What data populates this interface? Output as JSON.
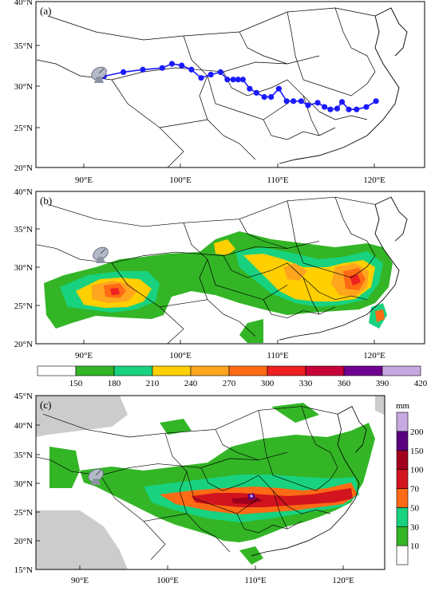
{
  "panels": [
    {
      "id": "(a)",
      "lat_labels": [
        "40°N",
        "35°N",
        "30°N",
        "25°N",
        "20°N"
      ],
      "lon_labels": [
        "90°E",
        "100°E",
        "110°E",
        "120°E"
      ],
      "track_color": "#1a1aff",
      "track_points": [
        [
          92,
          31
        ],
        [
          94,
          31.5
        ],
        [
          96,
          31.8
        ],
        [
          98,
          32
        ],
        [
          99,
          32.5
        ],
        [
          100,
          32.3
        ],
        [
          101,
          31.8
        ],
        [
          102,
          30.8
        ],
        [
          103,
          31.2
        ],
        [
          104,
          31.5
        ],
        [
          104.7,
          30.6
        ],
        [
          105.3,
          30.6
        ],
        [
          105.8,
          30.6
        ],
        [
          106.3,
          30.6
        ],
        [
          107,
          29.5
        ],
        [
          107.7,
          29
        ],
        [
          108.5,
          28.5
        ],
        [
          109.2,
          28.5
        ],
        [
          110,
          29.5
        ],
        [
          110.8,
          28
        ],
        [
          111.5,
          28
        ],
        [
          112.3,
          28
        ],
        [
          113,
          27.5
        ],
        [
          114,
          27.8
        ],
        [
          114.7,
          27.3
        ],
        [
          115.3,
          27
        ],
        [
          116,
          27.1
        ],
        [
          116.5,
          27.9
        ],
        [
          117.2,
          27
        ],
        [
          118,
          27
        ],
        [
          119,
          27.3
        ],
        [
          120,
          28
        ]
      ]
    },
    {
      "id": "(b)",
      "lat_labels": [
        "40°N",
        "35°N",
        "30°N",
        "25°N",
        "20°N"
      ],
      "lon_labels": [
        "90°E",
        "100°E",
        "110°E",
        "120°E"
      ]
    },
    {
      "id": "(c)",
      "lat_labels": [
        "45°N",
        "40°N",
        "35°N",
        "30°N",
        "25°N",
        "20°N",
        "15°N"
      ],
      "lon_labels": [
        "90°E",
        "100°E",
        "110°E",
        "120°E"
      ]
    }
  ],
  "colorbar_b": {
    "colors": [
      "#ffffff",
      "#33b526",
      "#18d27f",
      "#ffcf00",
      "#ffa51e",
      "#ff6a14",
      "#ee2020",
      "#c8003a",
      "#700090",
      "#c8a8e0"
    ],
    "labels": [
      "150",
      "180",
      "210",
      "240",
      "270",
      "300",
      "330",
      "360",
      "390",
      "420"
    ]
  },
  "colorbar_c": {
    "unit": "mm",
    "colors": [
      "#ffffff",
      "#33b526",
      "#18d27f",
      "#ff6a14",
      "#d2141e",
      "#a0001e",
      "#5a0080",
      "#c8a8e0"
    ],
    "labels": [
      "10",
      "30",
      "50",
      "70",
      "100",
      "150",
      "200"
    ]
  }
}
